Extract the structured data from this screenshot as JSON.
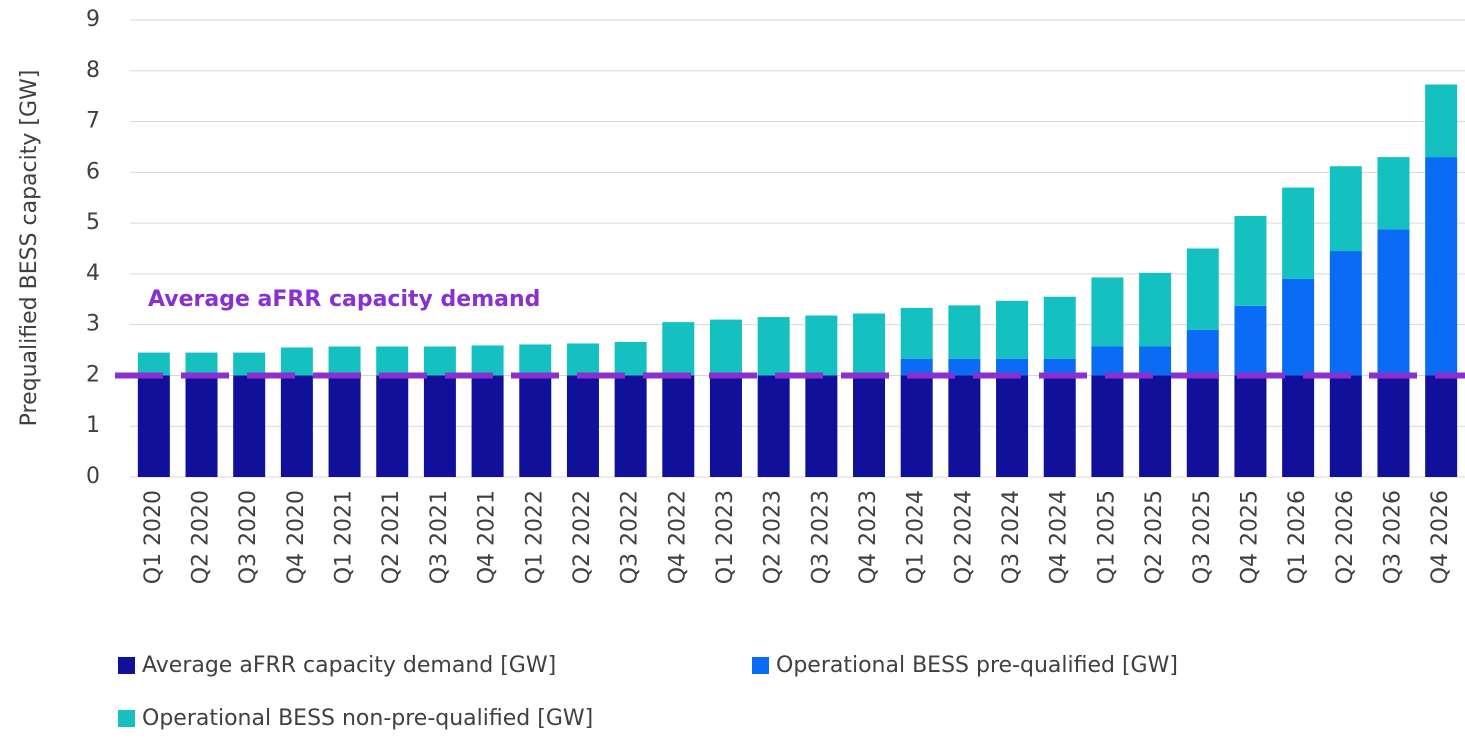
{
  "chart_data": {
    "type": "stacked_bar",
    "y_label": "Prequalified BESS capacity [GW]",
    "categories": [
      "Q1 2020",
      "Q2 2020",
      "Q3 2020",
      "Q4 2020",
      "Q1 2021",
      "Q2 2021",
      "Q3 2021",
      "Q4 2021",
      "Q1 2022",
      "Q2 2022",
      "Q3 2022",
      "Q4 2022",
      "Q1 2023",
      "Q2 2023",
      "Q3 2023",
      "Q4 2023",
      "Q1 2024",
      "Q2 2024",
      "Q3 2024",
      "Q4 2024",
      "Q1 2025",
      "Q2 2025",
      "Q3 2025",
      "Q4 2025",
      "Q1 2026",
      "Q2 2026",
      "Q3 2026",
      "Q4 2026"
    ],
    "series": [
      {
        "name": "Average aFRR capacity demand [GW]",
        "color": "#10109a",
        "values": [
          2,
          2,
          2,
          2,
          2,
          2,
          2,
          2,
          2,
          2,
          2,
          2,
          2,
          2,
          2,
          2,
          2,
          2,
          2,
          2,
          2,
          2,
          2,
          2,
          2,
          2,
          2,
          2
        ]
      },
      {
        "name": "Operational BESS pre-qualified [GW]",
        "color": "#0a6cf5",
        "values": [
          0,
          0,
          0,
          0,
          0,
          0,
          0,
          0,
          0,
          0,
          0,
          0,
          0,
          0,
          0,
          0,
          0.33,
          0.33,
          0.33,
          0.33,
          0.57,
          0.57,
          0.9,
          1.37,
          1.9,
          2.45,
          2.88,
          4.3
        ]
      },
      {
        "name": "Operational BESS non-pre-qualified [GW]",
        "color": "#14c0c0",
        "values": [
          0.45,
          0.45,
          0.45,
          0.55,
          0.57,
          0.57,
          0.57,
          0.59,
          0.61,
          0.63,
          0.66,
          1.05,
          1.1,
          1.15,
          1.18,
          1.22,
          1.0,
          1.05,
          1.14,
          1.22,
          1.36,
          1.45,
          1.6,
          1.77,
          1.8,
          1.67,
          1.42,
          1.43
        ]
      }
    ],
    "reference_line": {
      "value": 2,
      "label": "Average aFRR capacity demand",
      "color": "#8a2fd0"
    },
    "ylim": [
      0,
      9
    ],
    "yticks": [
      0,
      1,
      2,
      3,
      4,
      5,
      6,
      7,
      8,
      9
    ],
    "grid": true
  }
}
